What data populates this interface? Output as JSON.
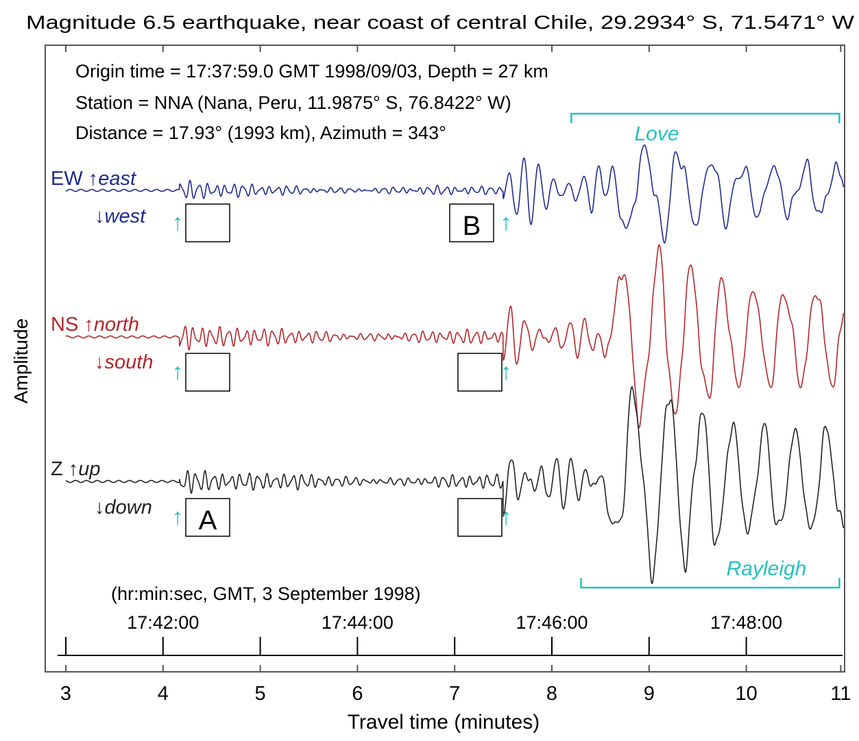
{
  "chart_data": {
    "type": "line",
    "title": "Magnitude 6.5 earthquake, near coast of central Chile, 29.2934° S, 71.5471° W",
    "info_lines": [
      "Origin time = 17:37:59.0 GMT 1998/09/03, Depth = 27 km",
      "Station = NNA (Nana, Peru, 11.9875° S, 76.8422° W)",
      "Distance = 17.93° (1993 km), Azimuth = 343°"
    ],
    "ylabel": "Amplitude",
    "xlabel": "Travel time (minutes)",
    "xlim": [
      3,
      11
    ],
    "x_ticks": [
      3,
      4,
      5,
      6,
      7,
      8,
      9,
      10,
      11
    ],
    "top_axis_caption": "(hr:min:sec, GMT, 3 September 1998)",
    "top_axis_ticks": [
      {
        "x": 4,
        "label": "17:42:00"
      },
      {
        "x": 5,
        "label": ""
      },
      {
        "x": 6,
        "label": "17:44:00"
      },
      {
        "x": 7,
        "label": ""
      },
      {
        "x": 8,
        "label": "17:46:00"
      },
      {
        "x": 9,
        "label": ""
      },
      {
        "x": 10,
        "label": "17:48:00"
      }
    ],
    "series": [
      {
        "key": "ew",
        "name": "EW",
        "up_label": "east",
        "down_label": "west",
        "color": "#1f2a8f",
        "onset_1": 4.17,
        "onset_2": 7.5,
        "pre_amp": 0.25,
        "noise_amp": 0.12,
        "post_amp": 0.9,
        "surface_amp": 1.2
      },
      {
        "key": "ns",
        "name": "NS",
        "up_label": "north",
        "down_label": "south",
        "color": "#b5262a",
        "onset_1": 4.17,
        "onset_2": 7.5,
        "pre_amp": 0.35,
        "noise_amp": 0.2,
        "post_amp": 0.6,
        "surface_amp": 2.4
      },
      {
        "key": "z",
        "name": "Z",
        "up_label": "up",
        "down_label": "down",
        "color": "#222222",
        "onset_1": 4.17,
        "onset_2": 7.5,
        "pre_amp": 0.35,
        "noise_amp": 0.2,
        "post_amp": 0.9,
        "surface_amp": 2.6
      }
    ],
    "phase_brackets": [
      {
        "label": "Love",
        "x_start": 8.2,
        "x_end": 11.0,
        "color": "#22c1c3"
      },
      {
        "label": "Rayleigh",
        "x_start": 8.3,
        "x_end": 11.0,
        "color": "#22c1c3"
      }
    ],
    "arrival_boxes": [
      {
        "trace": "ew",
        "x": 4.17,
        "label": ""
      },
      {
        "trace": "ew",
        "x": 7.5,
        "label": "B"
      },
      {
        "trace": "ns",
        "x": 4.17,
        "label": ""
      },
      {
        "trace": "ns",
        "x": 7.5,
        "label": ""
      },
      {
        "trace": "z",
        "x": 4.17,
        "label": "A"
      },
      {
        "trace": "z",
        "x": 7.5,
        "label": ""
      }
    ],
    "arrow_color": "#22c1c3",
    "grid": false
  }
}
